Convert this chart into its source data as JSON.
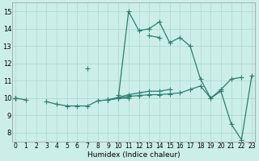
{
  "x": [
    0,
    1,
    2,
    3,
    4,
    5,
    6,
    7,
    8,
    9,
    10,
    11,
    12,
    13,
    14,
    15,
    16,
    17,
    18,
    19,
    20,
    21,
    22,
    23
  ],
  "lines": [
    [
      10.0,
      9.9,
      null,
      null,
      null,
      null,
      null,
      null,
      null,
      9.9,
      10.0,
      10.1,
      10.15,
      10.2,
      10.2,
      10.25,
      10.3,
      10.5,
      10.7,
      10.0,
      10.5,
      11.1,
      11.2,
      null
    ],
    [
      10.0,
      null,
      null,
      9.8,
      9.65,
      9.55,
      9.55,
      9.55,
      9.85,
      9.9,
      10.0,
      10.0,
      null,
      null,
      null,
      null,
      null,
      null,
      null,
      null,
      null,
      null,
      null,
      null
    ],
    [
      10.0,
      null,
      null,
      null,
      null,
      null,
      null,
      null,
      null,
      9.9,
      10.05,
      10.2,
      10.3,
      10.4,
      10.4,
      10.5,
      null,
      null,
      null,
      null,
      null,
      null,
      null,
      null
    ],
    [
      10.0,
      null,
      null,
      null,
      null,
      null,
      null,
      11.7,
      null,
      9.9,
      10.0,
      15.0,
      13.9,
      14.0,
      14.4,
      13.2,
      13.5,
      13.0,
      11.1,
      10.0,
      10.4,
      8.5,
      7.6,
      11.3
    ],
    [
      10.0,
      null,
      null,
      null,
      null,
      null,
      null,
      null,
      null,
      null,
      10.2,
      null,
      null,
      13.6,
      13.5,
      null,
      null,
      null,
      null,
      null,
      null,
      null,
      null,
      null
    ]
  ],
  "color": "#2a7f6f",
  "bg_color": "#cceee8",
  "grid_color": "#aad8d0",
  "ylim": [
    7.5,
    15.5
  ],
  "xlim": [
    -0.3,
    23.3
  ],
  "xlabel": "Humidex (Indice chaleur)",
  "yticks": [
    8,
    9,
    10,
    11,
    12,
    13,
    14,
    15
  ],
  "xticks": [
    0,
    1,
    2,
    3,
    4,
    5,
    6,
    7,
    8,
    9,
    10,
    11,
    12,
    13,
    14,
    15,
    16,
    17,
    18,
    19,
    20,
    21,
    22,
    23
  ],
  "marker": "+",
  "markersize": 4.0,
  "linewidth": 0.9,
  "tick_fontsize": 5.5,
  "xlabel_fontsize": 6.5
}
